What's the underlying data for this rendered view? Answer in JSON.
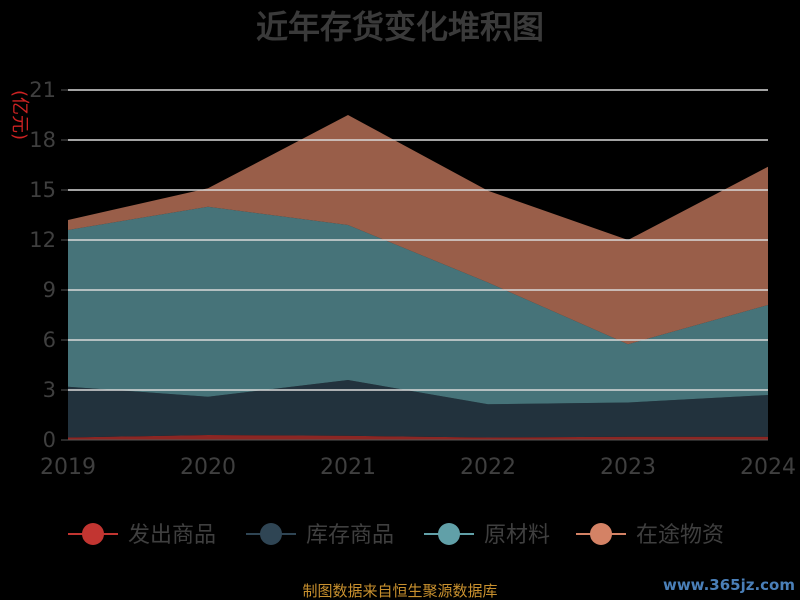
{
  "chart_data": {
    "type": "area",
    "stacked": true,
    "title": "近年存货变化堆积图",
    "ylabel": "(亿元)",
    "xlabel": "",
    "ylim": [
      0,
      21
    ],
    "yticks": [
      0,
      3,
      6,
      9,
      12,
      15,
      18,
      21
    ],
    "categories": [
      "2019",
      "2020",
      "2021",
      "2022",
      "2023",
      "2024"
    ],
    "grid": true,
    "legend_position": "bottom",
    "series": [
      {
        "name": "发出商品",
        "color": "#c23531",
        "values": [
          0.15,
          0.3,
          0.25,
          0.15,
          0.2,
          0.2
        ]
      },
      {
        "name": "库存商品",
        "color": "#2f4554",
        "values": [
          3.05,
          2.3,
          3.35,
          2.0,
          2.05,
          2.5
        ]
      },
      {
        "name": "原材料",
        "color": "#61a0a8",
        "values": [
          9.4,
          11.4,
          9.3,
          7.3,
          3.5,
          5.4
        ]
      },
      {
        "name": "在途物资",
        "color": "#d48265",
        "values": [
          0.6,
          1.1,
          6.6,
          5.5,
          6.25,
          8.3
        ]
      }
    ]
  },
  "footer": {
    "source": "制图数据来自恒生聚源数据库",
    "watermark": "www.365jz.com"
  }
}
